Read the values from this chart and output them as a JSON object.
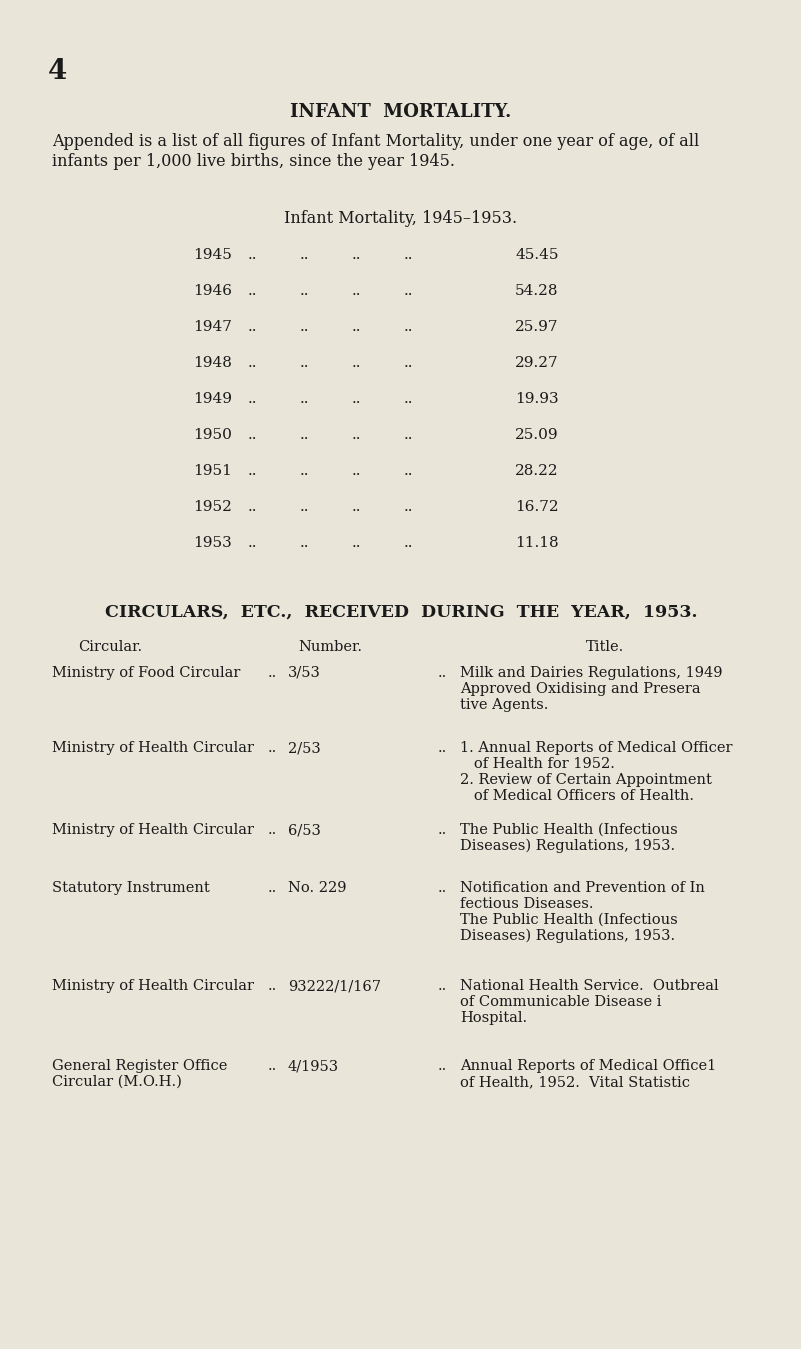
{
  "background_color": "#e9e5d9",
  "page_number": "4",
  "main_title": "INFANT  MORTALITY.",
  "intro_line1": "Appended is a list of all figures of Infant Mortality, under one year of age, of all",
  "intro_line2": "infants per 1,000 live births, since the year 1945.",
  "table1_title": "Infant Mortality, 1945–1953.",
  "mortality_years": [
    "1945",
    "1946",
    "1947",
    "1948",
    "1949",
    "1950",
    "1951",
    "1952",
    "1953"
  ],
  "mortality_values": [
    "45.45",
    "54.28",
    "25.97",
    "29.27",
    "19.93",
    "25.09",
    "28.22",
    "16.72",
    "11.18"
  ],
  "circulars_title": "CIRCULARS,  ETC.,  RECEIVED  DURING  THE  YEAR,  1953.",
  "col_circular": "Circular.",
  "col_number": "Number.",
  "col_title": "Title.",
  "circulars": [
    {
      "circular": "Ministry of Food Circular",
      "number": "3/53",
      "title_lines": [
        "Milk and Dairies Regulations, 1949",
        "Approved Oxidising and Presera",
        "tive Agents."
      ]
    },
    {
      "circular": "Ministry of Health Circular",
      "number": "2/53",
      "title_lines": [
        "1. Annual Reports of Medical Officer",
        "   of Health for 1952.",
        "2. Review of Certain Appointment",
        "   of Medical Officers of Health."
      ]
    },
    {
      "circular": "Ministry of Health Circular",
      "number": "6/53",
      "title_lines": [
        "The Public Health (Infectious",
        "Diseases) Regulations, 1953."
      ]
    },
    {
      "circular": "Statutory Instrument",
      "number": "No. 229",
      "title_lines": [
        "Notification and Prevention of In",
        "fectious Diseases.",
        "The Public Health (Infectious",
        "Diseases) Regulations, 1953."
      ]
    },
    {
      "circular": "Ministry of Health Circular",
      "number": "93222/1/167",
      "title_lines": [
        "National Health Service.  Outbreal",
        "of Communicable Disease i",
        "Hospital."
      ]
    },
    {
      "circular_lines": [
        "General Register Office",
        "Circular (M.O.H.)"
      ],
      "number": "4/1953",
      "title_lines": [
        "Annual Reports of Medical Office1",
        "of Health, 1952.  Vital Statistic"
      ]
    }
  ],
  "text_color": "#1a1a1a",
  "font_size_main": 13,
  "font_size_body": 11.5,
  "font_size_table": 11,
  "font_size_circ_title": 12.5,
  "font_size_circ_body": 10.5
}
